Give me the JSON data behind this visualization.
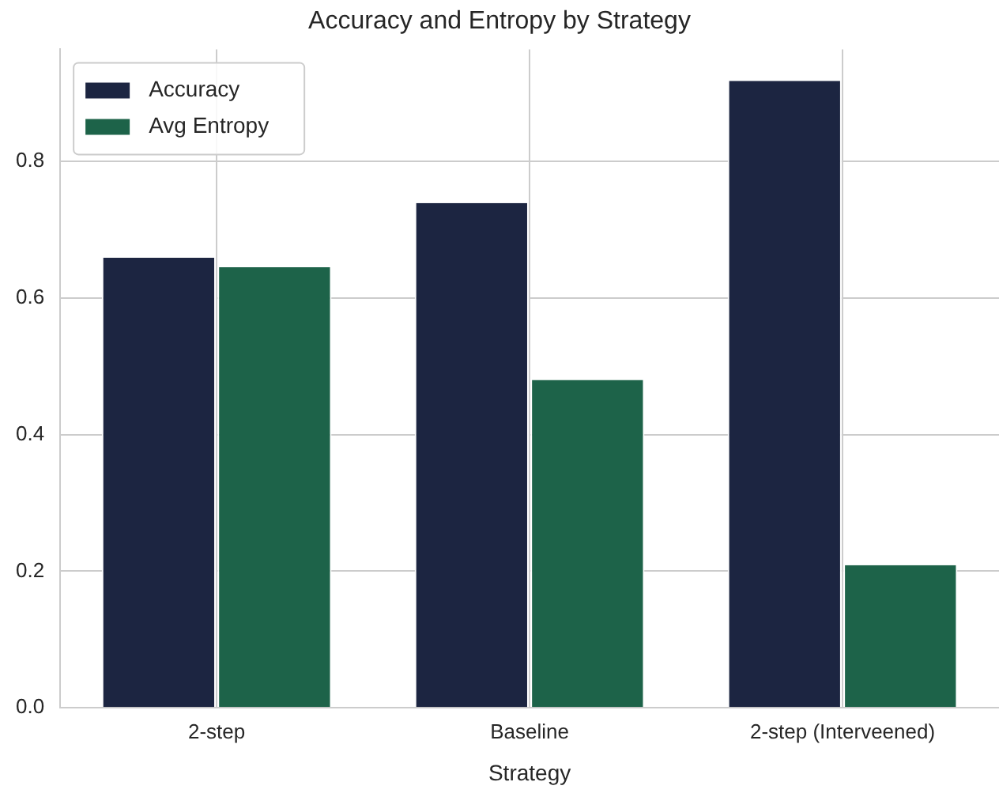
{
  "chart_data": {
    "type": "bar",
    "title": "Accuracy and Entropy by Strategy",
    "xlabel": "Strategy",
    "categories": [
      "2-step",
      "Baseline",
      "2-step (Interveened)"
    ],
    "series": [
      {
        "name": "Accuracy",
        "color": "#1c2541",
        "values": [
          0.659,
          0.739,
          0.918
        ]
      },
      {
        "name": "Avg Entropy",
        "color": "#1d6349",
        "values": [
          0.645,
          0.48,
          0.209
        ]
      }
    ],
    "ylim": [
      0,
      0.964
    ],
    "yticks": [
      {
        "value": 0,
        "label": "0.0"
      },
      0.2,
      0.4,
      0.6,
      0.8
    ],
    "grid": true,
    "legend": "top left"
  }
}
